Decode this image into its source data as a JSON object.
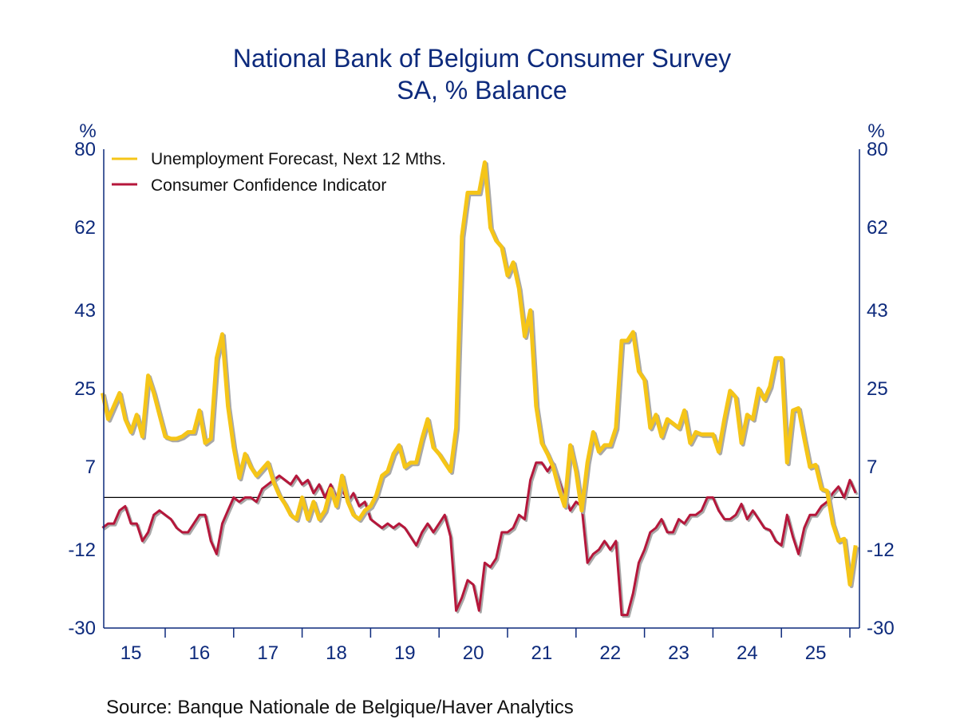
{
  "chart_data": {
    "type": "line",
    "title": "National Bank of Belgium Consumer Survey",
    "subtitle": "SA, % Balance",
    "ylabel_left": "%",
    "ylabel_right": "%",
    "ylim": [
      -30,
      80
    ],
    "yticks": [
      80,
      62,
      43,
      25,
      7,
      -12,
      -30
    ],
    "ytick_labels": [
      "80",
      "62",
      "43",
      "25",
      "7",
      "-12",
      "-30"
    ],
    "xtick_labels": [
      "15",
      "16",
      "17",
      "18",
      "19",
      "20",
      "21",
      "22",
      "23",
      "24",
      "25"
    ],
    "x_frequency": "monthly",
    "x": [
      "2015-02",
      "2015-03",
      "2015-04",
      "2015-05",
      "2015-06",
      "2015-07",
      "2015-08",
      "2015-09",
      "2015-10",
      "2015-11",
      "2015-12",
      "2016-01",
      "2016-02",
      "2016-03",
      "2016-04",
      "2016-05",
      "2016-06",
      "2016-07",
      "2016-08",
      "2016-09",
      "2016-10",
      "2016-11",
      "2016-12",
      "2017-01",
      "2017-02",
      "2017-03",
      "2017-04",
      "2017-05",
      "2017-06",
      "2017-07",
      "2017-08",
      "2017-09",
      "2017-10",
      "2017-11",
      "2017-12",
      "2018-01",
      "2018-02",
      "2018-03",
      "2018-04",
      "2018-05",
      "2018-06",
      "2018-07",
      "2018-08",
      "2018-09",
      "2018-10",
      "2018-11",
      "2018-12",
      "2019-01",
      "2019-02",
      "2019-03",
      "2019-04",
      "2019-05",
      "2019-06",
      "2019-07",
      "2019-08",
      "2019-09",
      "2019-10",
      "2019-11",
      "2019-12",
      "2020-01",
      "2020-02",
      "2020-03",
      "2020-04",
      "2020-05",
      "2020-06",
      "2020-07",
      "2020-08",
      "2020-09",
      "2020-10",
      "2020-11",
      "2020-12",
      "2021-01",
      "2021-02",
      "2021-03",
      "2021-04",
      "2021-05",
      "2021-06",
      "2021-07",
      "2021-08",
      "2021-09",
      "2021-10",
      "2021-11",
      "2021-12",
      "2022-01",
      "2022-02",
      "2022-03",
      "2022-04",
      "2022-05",
      "2022-06",
      "2022-07",
      "2022-08",
      "2022-09",
      "2022-10",
      "2022-11",
      "2022-12",
      "2023-01",
      "2023-02",
      "2023-03",
      "2023-04",
      "2023-05",
      "2023-06",
      "2023-07",
      "2023-08",
      "2023-09",
      "2023-10",
      "2023-11",
      "2023-12",
      "2024-01",
      "2024-02",
      "2024-03",
      "2024-04",
      "2024-05",
      "2024-06",
      "2024-07",
      "2024-08",
      "2024-09",
      "2024-10",
      "2024-11",
      "2024-12",
      "2025-01",
      "2025-02",
      "2025-03",
      "2025-04",
      "2025-05",
      "2025-06",
      "2025-07",
      "2025-08",
      "2025-09",
      "2025-10",
      "2025-11",
      "2025-12",
      "2026-01",
      "2026-02"
    ],
    "series": [
      {
        "name": "Unemployment Forecast, Next 12 Mths.",
        "color": "#f5c518",
        "values": [
          24,
          18,
          21,
          24,
          18,
          15,
          19,
          14,
          28,
          24,
          19,
          14,
          13.5,
          13.5,
          14,
          15,
          15,
          20,
          12.5,
          13.5,
          32,
          37.5,
          21,
          11.5,
          4.5,
          10,
          7,
          5,
          6.5,
          8,
          3.5,
          0.5,
          -1.5,
          -4,
          -5,
          0,
          -5,
          -1,
          -5,
          -3,
          2,
          -2,
          5,
          -1,
          -4,
          -5,
          -3,
          -2,
          0.5,
          5,
          6,
          10,
          12,
          7,
          8,
          8,
          13.5,
          18,
          11.5,
          10,
          8,
          6,
          16,
          60,
          70,
          70,
          70,
          77,
          62,
          59,
          57.5,
          51,
          54,
          48,
          37,
          43,
          21,
          12.5,
          10,
          7,
          2,
          -2,
          12,
          6,
          -3,
          8,
          15,
          10.5,
          12,
          12,
          16,
          36,
          36,
          38,
          29,
          27,
          16,
          19,
          14,
          18,
          17,
          16,
          20,
          12.5,
          15,
          14.5,
          14.5,
          14.5,
          10.5,
          18,
          24.5,
          23,
          12.5,
          19,
          18,
          25,
          22.5,
          25.5,
          32,
          32,
          8,
          20,
          20.5,
          13.5,
          7,
          7.5,
          2,
          1.5,
          -6,
          -10,
          -9.5,
          -20,
          -11
        ]
      },
      {
        "name": "Consumer Confidence Indicator",
        "color": "#b5173b",
        "values": [
          -7,
          -6,
          -6,
          -3,
          -2,
          -6,
          -6,
          -10,
          -8,
          -4,
          -3,
          -4,
          -5,
          -7,
          -8,
          -8,
          -6,
          -4,
          -4,
          -10,
          -13,
          -6,
          -3,
          0,
          -1,
          0,
          0,
          -1,
          2,
          3,
          4,
          5,
          4,
          3,
          5,
          3,
          4,
          1,
          3,
          0,
          3,
          0,
          2,
          -1,
          1,
          -2,
          -1,
          -5,
          -6,
          -7,
          -6,
          -7,
          -6,
          -7,
          -9,
          -11,
          -8,
          -6,
          -8,
          -6,
          -4,
          -9,
          -26,
          -23,
          -19,
          -20,
          -26,
          -15,
          -16,
          -14,
          -8,
          -8,
          -7,
          -4,
          -5,
          4,
          8,
          8,
          6,
          8,
          4,
          0,
          -3,
          -1,
          -2,
          -15,
          -13,
          -12,
          -10,
          -12,
          -10,
          -27,
          -27,
          -22,
          -15,
          -12,
          -8,
          -7,
          -5,
          -8,
          -8,
          -5,
          -6,
          -4,
          -4,
          -3,
          0,
          0,
          -3,
          -5,
          -5,
          -4,
          -1.5,
          -5,
          -3,
          -5,
          -7,
          -7.5,
          -10,
          -11,
          -4,
          -9,
          -13,
          -7,
          -4,
          -4,
          -2,
          -1,
          1,
          2.5,
          0,
          4,
          1
        ]
      }
    ],
    "zero_line": true,
    "grid": false,
    "legend_position": "top-left",
    "source": "Source:  Banque Nationale de Belgique/Haver Analytics"
  }
}
